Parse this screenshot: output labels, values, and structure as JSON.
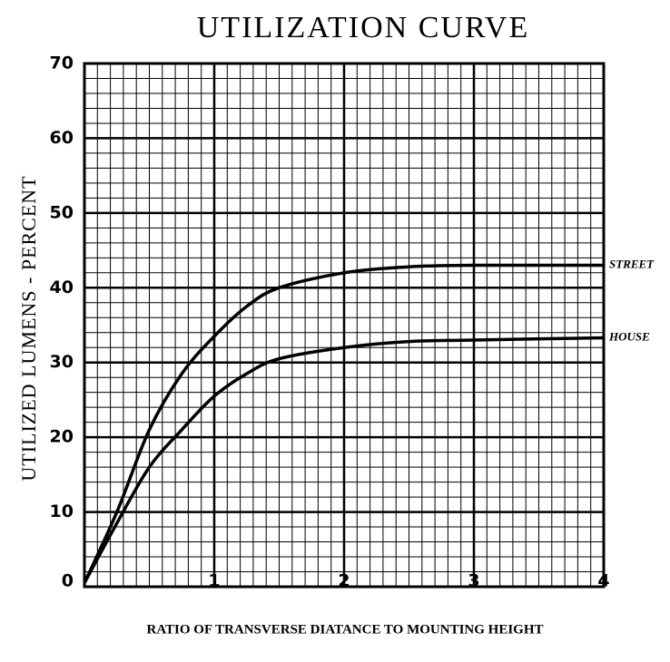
{
  "chart_data": {
    "type": "line",
    "title": "UTILIZATION CURVE",
    "xlabel": "RATIO OF TRANSVERSE DIATANCE TO MOUNTING HEIGHT",
    "ylabel": "UTILIZED LUMENS - PERCENT",
    "x": [
      0,
      0.25,
      0.5,
      0.75,
      1,
      1.25,
      1.5,
      2,
      2.5,
      3,
      4
    ],
    "series": [
      {
        "name": "STREET",
        "color": "#000000",
        "values": [
          0.5,
          10,
          21,
          28.5,
          33.5,
          37.5,
          40,
          42,
          42.8,
          43,
          43
        ]
      },
      {
        "name": "HOUSE",
        "color": "#000000",
        "values": [
          0.5,
          8.5,
          16,
          21,
          25.5,
          28.5,
          30.5,
          32,
          32.8,
          33,
          33.3
        ]
      }
    ],
    "xlim": [
      0,
      4
    ],
    "xticks": [
      1,
      2,
      3,
      4
    ],
    "ylim": [
      0,
      70
    ],
    "yticks": [
      0,
      10,
      20,
      30,
      40,
      50,
      60,
      70
    ],
    "grid": true
  }
}
